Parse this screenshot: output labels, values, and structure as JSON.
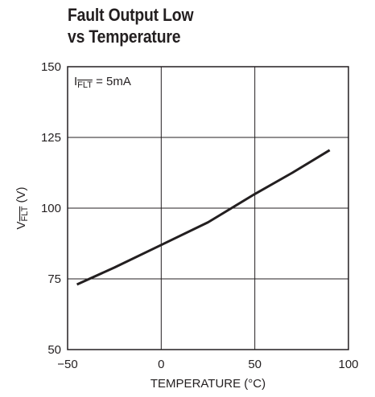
{
  "title_lines": [
    "Fault Output Low",
    "vs Temperature"
  ],
  "chart_data": {
    "type": "line",
    "xlabel": "TEMPERATURE (°C)",
    "ylabel": {
      "main": "V",
      "subscript": "FLT",
      "suffix": " (V)"
    },
    "annotation": {
      "main": "I",
      "subscript": "FLT",
      "suffix": " = 5mA"
    },
    "xlim": [
      -50,
      100
    ],
    "ylim": [
      50,
      150
    ],
    "xticks": [
      -50,
      0,
      50,
      100
    ],
    "xtick_labels": [
      "−50",
      "0",
      "50",
      "100"
    ],
    "yticks": [
      50,
      75,
      100,
      125,
      150
    ],
    "ytick_labels": [
      "50",
      "75",
      "100",
      "125",
      "150"
    ],
    "grid": true,
    "series": [
      {
        "x": [
          -45,
          -25,
          0,
          25,
          30,
          50,
          70,
          90
        ],
        "y": [
          73,
          79,
          87,
          95,
          97,
          105,
          112.5,
          120.5
        ]
      }
    ],
    "line_color": "#231f20"
  }
}
